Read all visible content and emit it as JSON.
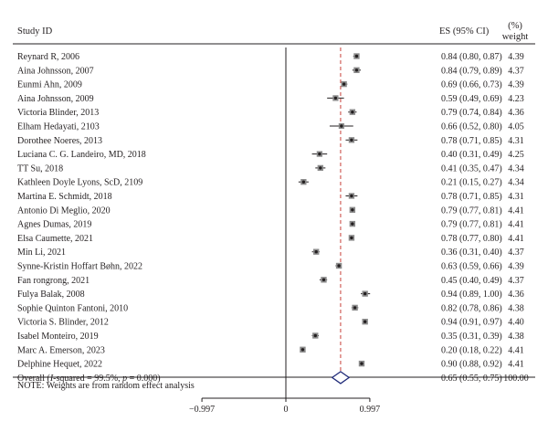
{
  "header": {
    "study_col": "Study ID",
    "es_col": "ES (95% CI)",
    "weight_pct": "(%)",
    "weight_word": "weight"
  },
  "chart_data": {
    "type": "forest",
    "title": "",
    "x_ticks": [
      -0.997,
      0,
      0.997
    ],
    "x_tick_labels": [
      "−0.997",
      "0",
      "0.997"
    ],
    "xlim": [
      -0.997,
      0.997
    ],
    "reference_line": 0,
    "overall_line": 0.65,
    "studies": [
      {
        "name": "Reynard R, 2006",
        "es": 0.84,
        "lo": 0.8,
        "hi": 0.87,
        "es_text": "0.84 (0.80, 0.87)",
        "weight": "4.39",
        "w": 4.39
      },
      {
        "name": "Aina Johnsson, 2007",
        "es": 0.84,
        "lo": 0.79,
        "hi": 0.89,
        "es_text": "0.84 (0.79, 0.89)",
        "weight": "4.37",
        "w": 4.37
      },
      {
        "name": "Eunmi Ahn, 2009",
        "es": 0.69,
        "lo": 0.66,
        "hi": 0.73,
        "es_text": "0.69 (0.66, 0.73)",
        "weight": "4.39",
        "w": 4.39
      },
      {
        "name": "Aina Johnsson, 2009",
        "es": 0.59,
        "lo": 0.49,
        "hi": 0.69,
        "es_text": "0.59 (0.49, 0.69)",
        "weight": "4.23",
        "w": 4.23
      },
      {
        "name": "Victoria Blinder, 2013",
        "es": 0.79,
        "lo": 0.74,
        "hi": 0.84,
        "es_text": "0.79 (0.74, 0.84)",
        "weight": "4.36",
        "w": 4.36
      },
      {
        "name": "Elham Hedayati, 2103",
        "es": 0.66,
        "lo": 0.52,
        "hi": 0.8,
        "es_text": "0.66 (0.52, 0.80)",
        "weight": "4.05",
        "w": 4.05
      },
      {
        "name": "Dorothee Noeres, 2013",
        "es": 0.78,
        "lo": 0.71,
        "hi": 0.85,
        "es_text": "0.78 (0.71, 0.85)",
        "weight": "4.31",
        "w": 4.31
      },
      {
        "name": "Luciana C. G. Landeiro, MD, 2018",
        "es": 0.4,
        "lo": 0.31,
        "hi": 0.49,
        "es_text": "0.40 (0.31, 0.49)",
        "weight": "4.25",
        "w": 4.25
      },
      {
        "name": "TT Su, 2018",
        "es": 0.41,
        "lo": 0.35,
        "hi": 0.47,
        "es_text": "0.41 (0.35, 0.47)",
        "weight": "4.34",
        "w": 4.34
      },
      {
        "name": "Kathleen Doyle Lyons, ScD, 2109",
        "es": 0.21,
        "lo": 0.15,
        "hi": 0.27,
        "es_text": "0.21 (0.15, 0.27)",
        "weight": "4.34",
        "w": 4.34
      },
      {
        "name": "Martina E. Schmidt, 2018",
        "es": 0.78,
        "lo": 0.71,
        "hi": 0.85,
        "es_text": "0.78 (0.71, 0.85)",
        "weight": "4.31",
        "w": 4.31
      },
      {
        "name": "Antonio Di Meglio, 2020",
        "es": 0.79,
        "lo": 0.77,
        "hi": 0.81,
        "es_text": "0.79 (0.77, 0.81)",
        "weight": "4.41",
        "w": 4.41
      },
      {
        "name": "Agnes Dumas, 2019",
        "es": 0.79,
        "lo": 0.77,
        "hi": 0.81,
        "es_text": "0.79 (0.77, 0.81)",
        "weight": "4.41",
        "w": 4.41
      },
      {
        "name": "Elsa Caumette, 2021",
        "es": 0.78,
        "lo": 0.77,
        "hi": 0.8,
        "es_text": "0.78 (0.77, 0.80)",
        "weight": "4.41",
        "w": 4.41
      },
      {
        "name": "Min Li, 2021",
        "es": 0.36,
        "lo": 0.31,
        "hi": 0.4,
        "es_text": "0.36 (0.31, 0.40)",
        "weight": "4.37",
        "w": 4.37
      },
      {
        "name": "Synne-Kristin Hoffart Bøhn, 2022",
        "es": 0.63,
        "lo": 0.59,
        "hi": 0.66,
        "es_text": "0.63 (0.59, 0.66)",
        "weight": "4.39",
        "w": 4.39
      },
      {
        "name": "Fan rongrong, 2021",
        "es": 0.45,
        "lo": 0.4,
        "hi": 0.49,
        "es_text": "0.45 (0.40, 0.49)",
        "weight": "4.37",
        "w": 4.37
      },
      {
        "name": "Fulya Balak, 2008",
        "es": 0.94,
        "lo": 0.89,
        "hi": 1.0,
        "es_text": "0.94 (0.89, 1.00)",
        "weight": "4.36",
        "w": 4.36
      },
      {
        "name": "Sophie Quinton Fantoni, 2010",
        "es": 0.82,
        "lo": 0.78,
        "hi": 0.86,
        "es_text": "0.82 (0.78, 0.86)",
        "weight": "4.38",
        "w": 4.38
      },
      {
        "name": "Victoria S. Blinder, 2012",
        "es": 0.94,
        "lo": 0.91,
        "hi": 0.97,
        "es_text": "0.94 (0.91, 0.97)",
        "weight": "4.40",
        "w": 4.4
      },
      {
        "name": "Isabel Monteiro, 2019",
        "es": 0.35,
        "lo": 0.31,
        "hi": 0.39,
        "es_text": "0.35 (0.31, 0.39)",
        "weight": "4.38",
        "w": 4.38
      },
      {
        "name": "Marc A. Emerson, 2023",
        "es": 0.2,
        "lo": 0.18,
        "hi": 0.22,
        "es_text": "0.20 (0.18, 0.22)",
        "weight": "4.41",
        "w": 4.41
      },
      {
        "name": "Delphine Hequet, 2022",
        "es": 0.9,
        "lo": 0.88,
        "hi": 0.92,
        "es_text": "0.90 (0.88, 0.92)",
        "weight": "4.41",
        "w": 4.41
      }
    ],
    "overall": {
      "label_pre": "Overall (",
      "label_i": "I",
      "label_mid": "-squared = 99.5%, ",
      "label_p": "p",
      "label_post": " = 0.000)",
      "es": 0.65,
      "lo": 0.55,
      "hi": 0.75,
      "es_text": "0.65 (0.55, 0.75)",
      "weight": "100.00"
    },
    "note": "NOTE: Weights are from random effect analysis",
    "colors": {
      "reference_line": "#231f20",
      "overall_line": "#c8413a",
      "diamond": "#1f2a78",
      "text": "#231f20"
    }
  }
}
